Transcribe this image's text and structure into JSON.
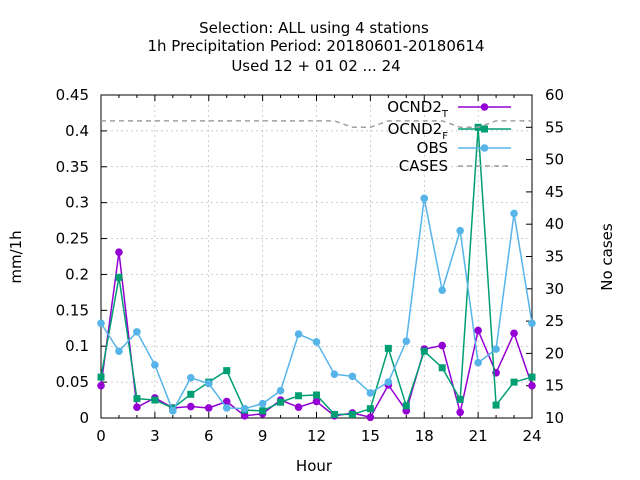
{
  "chart_data": {
    "type": "line",
    "title_lines": [
      "Selection: ALL using     4 stations",
      "1h Precipitation   Period: 20180601-20180614",
      "Used  12 + 01 02 ... 24"
    ],
    "xlabel": "Hour",
    "ylabel": "mm/1h",
    "y2label": "No cases",
    "xlim": [
      0,
      24
    ],
    "ylim": [
      0,
      0.45
    ],
    "y2lim": [
      10,
      60
    ],
    "xticks": [
      "0",
      "3",
      "6",
      "9",
      "12",
      "15",
      "18",
      "21",
      "24"
    ],
    "yticks": [
      "0",
      "0.05",
      "0.1",
      "0.15",
      "0.2",
      "0.25",
      "0.3",
      "0.35",
      "0.4",
      "0.45"
    ],
    "y2ticks": [
      "10",
      "15",
      "20",
      "25",
      "30",
      "35",
      "40",
      "45",
      "50",
      "55",
      "60"
    ],
    "grid": true,
    "legend_position": "top-right",
    "x": [
      0,
      1,
      2,
      3,
      4,
      5,
      6,
      7,
      8,
      9,
      10,
      11,
      12,
      13,
      14,
      15,
      16,
      17,
      18,
      19,
      20,
      21,
      22,
      23,
      24
    ],
    "series": [
      {
        "name": "OCND2",
        "name_sub": "T",
        "color": "#9400d3",
        "marker": "circle",
        "values": [
          0.045,
          0.231,
          0.015,
          0.028,
          0.014,
          0.016,
          0.014,
          0.023,
          0.003,
          0.006,
          0.025,
          0.015,
          0.023,
          0.003,
          0.007,
          0.001,
          0.046,
          0.01,
          0.096,
          0.101,
          0.008,
          0.122,
          0.063,
          0.118,
          0.045
        ]
      },
      {
        "name": "OCND2",
        "name_sub": "F",
        "color": "#009e73",
        "marker": "square",
        "values": [
          0.057,
          0.196,
          0.027,
          0.025,
          0.014,
          0.033,
          0.05,
          0.066,
          0.011,
          0.01,
          0.022,
          0.031,
          0.032,
          0.005,
          0.005,
          0.013,
          0.097,
          0.017,
          0.093,
          0.07,
          0.026,
          0.405,
          0.018,
          0.05,
          0.057
        ]
      },
      {
        "name": "OBS",
        "color": "#56b4e9",
        "marker": "circle",
        "values": [
          0.132,
          0.093,
          0.12,
          0.074,
          0.01,
          0.056,
          0.048,
          0.014,
          0.013,
          0.02,
          0.038,
          0.117,
          0.106,
          0.061,
          0.058,
          0.035,
          0.05,
          0.107,
          0.306,
          0.178,
          0.261,
          0.077,
          0.096,
          0.285,
          0.132
        ]
      },
      {
        "name": "CASES",
        "color": "#a0a0a0",
        "axis": "y2",
        "dashed": true,
        "values": [
          56,
          56,
          56,
          56,
          56,
          56,
          56,
          56,
          56,
          56,
          56,
          56,
          56,
          56,
          55,
          55,
          56,
          56,
          56,
          56,
          55,
          55,
          56,
          56,
          56
        ]
      }
    ]
  }
}
